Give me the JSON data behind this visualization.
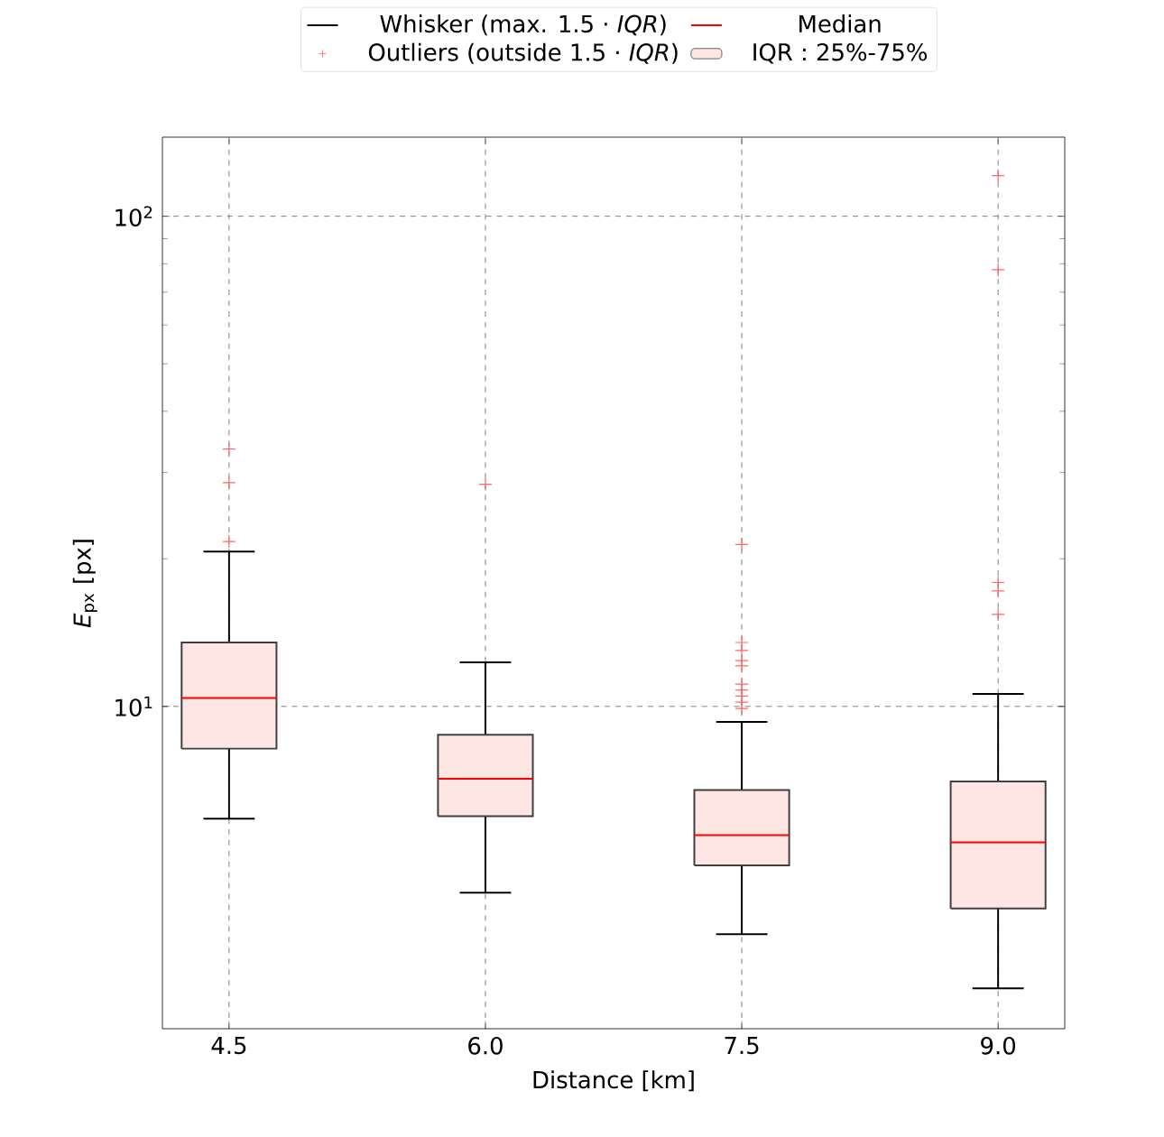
{
  "chart_data": {
    "type": "box",
    "xlabel": "Distance [km]",
    "ylabel": "*E*$_{px}$ [px]",
    "categories": [
      "4.5",
      "6.0",
      "7.5",
      "9.0"
    ],
    "log": "y",
    "ylim": [
      2.2,
      145
    ],
    "yticks": [
      {
        "value": 10,
        "label": "10$^{1}$"
      },
      {
        "value": 100,
        "label": "10$^{2}$"
      }
    ],
    "grid": true,
    "legend": "top",
    "marker": "cross",
    "annotations": [
      "Whisker (max. 1.5 · *IQR*)",
      "Outliers (outside 1.5 · *IQR*)",
      "Median"
    ],
    "series": [
      {
        "name": "IQR : 25%-75%",
        "color": "#fde6e4",
        "boxes": [
          {
            "low": 5.9,
            "q1": 8.2,
            "median": 10.4,
            "q3": 13.5,
            "high": 20.7,
            "outliers": [
              33.5,
              28.6,
              21.7
            ]
          },
          {
            "low": 4.17,
            "q1": 5.97,
            "median": 7.12,
            "q3": 8.75,
            "high": 12.3,
            "outliers": [
              28.4
            ]
          },
          {
            "low": 3.43,
            "q1": 4.74,
            "median": 5.46,
            "q3": 6.75,
            "high": 9.3,
            "outliers": [
              21.4,
              13.5,
              13.0,
              12.4,
              12.1,
              11.1,
              10.8,
              10.5,
              10.2,
              9.9
            ]
          },
          {
            "low": 2.66,
            "q1": 3.87,
            "median": 5.28,
            "q3": 7.03,
            "high": 10.6,
            "outliers": [
              121,
              77.8,
              17.9,
              17.2,
              15.4
            ]
          }
        ]
      }
    ]
  }
}
